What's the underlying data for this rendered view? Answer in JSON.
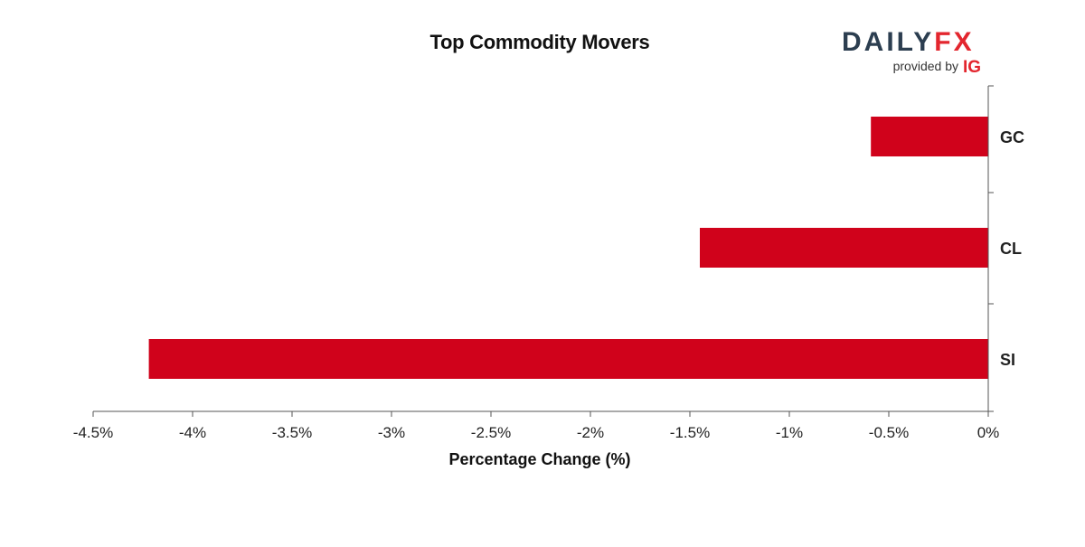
{
  "logo": {
    "brand_part1": "DAILY",
    "brand_part2": "FX",
    "provided_by": "provided by",
    "provider": "IG"
  },
  "colors": {
    "bar": "#d0021b",
    "brand_dark": "#2c3e50",
    "brand_red": "#e3262e",
    "axis": "#555555"
  },
  "chart_data": {
    "type": "bar",
    "orientation": "horizontal",
    "title": "Top Commodity Movers",
    "xlabel": "Percentage Change (%)",
    "ylabel": "",
    "categories": [
      "GC",
      "CL",
      "SI"
    ],
    "values": [
      -0.59,
      -1.45,
      -4.22
    ],
    "xlim": [
      -4.5,
      0
    ],
    "xticks": [
      -4.5,
      -4,
      -3.5,
      -3,
      -2.5,
      -2,
      -1.5,
      -1,
      -0.5,
      0
    ],
    "xtick_labels": [
      "-4.5%",
      "-4%",
      "-3.5%",
      "-3%",
      "-2.5%",
      "-2%",
      "-1.5%",
      "-1%",
      "-0.5%",
      "0%"
    ],
    "grid": false,
    "category_axis_side": "right"
  }
}
